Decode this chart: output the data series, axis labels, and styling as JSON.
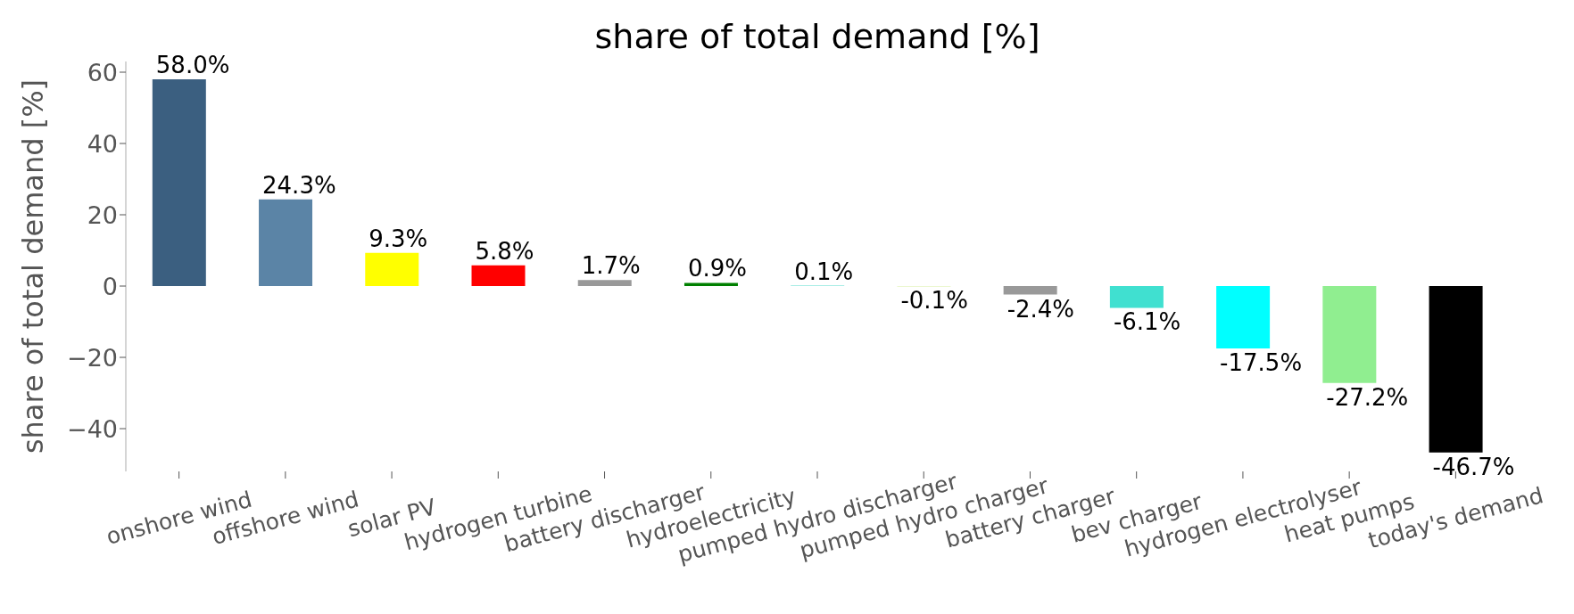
{
  "chart_data": {
    "type": "bar",
    "title": "share of total demand [%]",
    "ylabel": "share of total demand [%]",
    "categories": [
      "onshore wind",
      "offshore wind",
      "solar PV",
      "hydrogen turbine",
      "battery discharger",
      "hydroelectricity",
      "pumped hydro discharger",
      "pumped hydro charger",
      "battery charger",
      "bev charger",
      "hydrogen electrolyser",
      "heat pumps",
      "today's demand"
    ],
    "values": [
      58.0,
      24.3,
      9.3,
      5.8,
      1.7,
      0.9,
      0.1,
      -0.1,
      -2.4,
      -6.1,
      -17.5,
      -27.2,
      -46.7
    ],
    "colors": [
      "#3b5f80",
      "#5b84a6",
      "#ffff00",
      "#ff0000",
      "#999999",
      "#008000",
      "#51dbcc",
      "#d9f0a3",
      "#999999",
      "#40e0d0",
      "#00ffff",
      "#90ee90",
      "#000000"
    ],
    "value_labels": [
      "58.0%",
      "24.3%",
      "9.3%",
      "5.8%",
      "1.7%",
      "0.9%",
      "0.1%",
      "-0.1%",
      "-2.4%",
      "-6.1%",
      "-17.5%",
      "-27.2%",
      "-46.7%"
    ],
    "ylim": [
      -52,
      63
    ],
    "yticks": [
      {
        "value": -40,
        "label": "−40"
      },
      {
        "value": -20,
        "label": "−20"
      },
      0,
      20,
      40,
      60
    ]
  }
}
